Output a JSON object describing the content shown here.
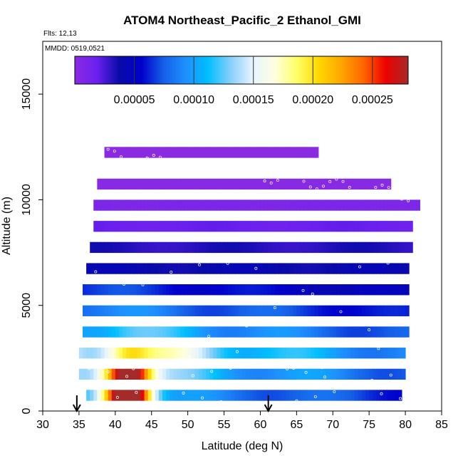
{
  "chart_data": {
    "type": "heatmap",
    "title": "ATOM4 Northeast_Pacific_2 Ethanol_GMI",
    "flights_note": "Flts: 12,13",
    "date_note": "MMDD: 0519,0521",
    "xlabel": "Latitude (deg N)",
    "ylabel": "Altitude (m)",
    "xlim": [
      30,
      85
    ],
    "ylim": [
      0,
      17500
    ],
    "xticks": [
      "30",
      "35",
      "40",
      "45",
      "50",
      "55",
      "60",
      "65",
      "70",
      "75",
      "80",
      "85"
    ],
    "yticks": [
      "0",
      "5000",
      "10000",
      "15000"
    ],
    "colorbar": {
      "range": [
        0,
        0.00028
      ],
      "tick_labels": [
        "0.00005",
        "0.00010",
        "0.00015",
        "0.00020",
        "0.00025"
      ],
      "tick_values": [
        5e-05,
        0.0001,
        0.00015,
        0.0002,
        0.00025
      ],
      "colors": [
        "#8a2be2",
        "#6a20ee",
        "#0a0aa8",
        "#0000cc",
        "#1560e8",
        "#1e90ff",
        "#00bfff",
        "#87cefa",
        "#e6f4ff",
        "#ffffe0",
        "#ffff66",
        "#ffd700",
        "#ffa500",
        "#ff6600",
        "#ee0000",
        "#a52a2a"
      ]
    },
    "field": {
      "lat_extent": [
        34.5,
        82
      ],
      "alt_extent": [
        0,
        12500
      ],
      "description_rows": [
        {
          "alt": 12000,
          "lat_min": 38.5,
          "lat_max": 68,
          "value": 0.0
        },
        {
          "alt": 10500,
          "lat_min": 37.5,
          "lat_max": 78,
          "value": 2e-06
        },
        {
          "alt": 9500,
          "lat_min": 37.0,
          "lat_max": 82,
          "value": 8e-06
        },
        {
          "alt": 8500,
          "lat_min": 37.0,
          "lat_max": 81,
          "value": 1.8e-05
        },
        {
          "alt": 7500,
          "lat_min": 36.5,
          "lat_max": 81,
          "value": 3.2e-05
        },
        {
          "alt": 6500,
          "lat_min": 36.0,
          "lat_max": 80.5,
          "value": 4e-05
        },
        {
          "alt": 5500,
          "lat_min": 35.5,
          "lat_max": 80.5,
          "value": 6e-05
        },
        {
          "alt": 4500,
          "lat_min": 35.5,
          "lat_max": 80.5,
          "value": 8e-05
        },
        {
          "alt": 3500,
          "lat_min": 35.5,
          "lat_max": 80.5,
          "value": 0.0001
        },
        {
          "alt": 2500,
          "lat_min": 35.0,
          "lat_max": 80.0,
          "value": 0.000125
        },
        {
          "alt": 1500,
          "lat_min": 35.0,
          "lat_max": 80.0,
          "value": 0.00011
        },
        {
          "alt": 500,
          "lat_min": 36.0,
          "lat_max": 79.5,
          "value": 9e-05
        }
      ],
      "plume": {
        "lat": 41.5,
        "alt": 700,
        "peak": 0.00027
      }
    },
    "arrows_lat": [
      34.7,
      61.1
    ]
  }
}
